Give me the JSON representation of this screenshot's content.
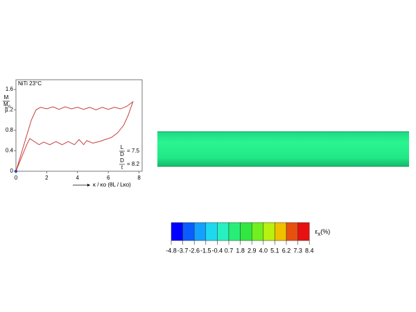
{
  "chart_data": {
    "type": "line",
    "title": "NiTi 23°C",
    "y_label": {
      "numerator": "M",
      "denominator": "M",
      "denominator_sub": "o"
    },
    "x_label": "κ / κo (θL / Lκo)",
    "annotations": [
      {
        "numerator": "L",
        "denominator": "D",
        "text": "= 7.5"
      },
      {
        "numerator": "D",
        "denominator": "t",
        "text": "= 8.2"
      }
    ],
    "xlim": [
      0,
      8.2
    ],
    "xticks": [
      0,
      2,
      4,
      6,
      8
    ],
    "ylim": [
      0,
      1.79
    ],
    "yticks": [
      0,
      0.4,
      0.8,
      1.2,
      1.6
    ],
    "series": [
      {
        "color": "#c83c3c",
        "x": [
          0,
          0.5,
          1.0,
          1.3,
          1.6,
          2,
          2.4,
          2.8,
          3.2,
          3.6,
          4,
          4.4,
          4.8,
          5.2,
          5.6,
          6,
          6.4,
          6.8,
          7.2,
          7.6,
          7.3,
          7.0,
          6.6,
          6.2,
          5.8,
          5.4,
          5.0,
          4.6,
          4.4,
          4.1,
          3.8,
          3.4,
          3.0,
          2.6,
          2.2,
          1.8,
          1.5,
          1.2,
          0.9,
          0.7,
          0.4,
          0
        ],
        "values": [
          0,
          0.5,
          1.0,
          1.2,
          1.25,
          1.22,
          1.26,
          1.21,
          1.26,
          1.22,
          1.25,
          1.21,
          1.25,
          1.2,
          1.25,
          1.21,
          1.25,
          1.22,
          1.27,
          1.36,
          1.1,
          0.9,
          0.75,
          0.66,
          0.62,
          0.58,
          0.55,
          0.6,
          0.52,
          0.62,
          0.52,
          0.58,
          0.52,
          0.58,
          0.52,
          0.57,
          0.52,
          0.58,
          0.64,
          0.52,
          0.3,
          0
        ]
      }
    ]
  },
  "colorbar": {
    "symbol": "ε",
    "symbol_sub": "x",
    "unit": "(%)",
    "colors": [
      "#0000ff",
      "#0a5cff",
      "#14a0ff",
      "#1ed8f0",
      "#28f0c0",
      "#28ee78",
      "#30e840",
      "#70f020",
      "#b8f010",
      "#f0c000",
      "#e85010",
      "#e81010"
    ],
    "ticks": [
      -4.8,
      -3.7,
      -2.6,
      -1.5,
      -0.4,
      0.7,
      1.8,
      2.9,
      {
        "value": 4,
        "label": "4.0"
      },
      5.1,
      6.2,
      7.3,
      8.4
    ]
  }
}
